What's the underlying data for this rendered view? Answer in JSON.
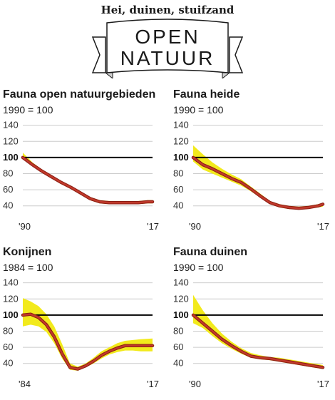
{
  "header": {
    "subtitle": "Hei, duinen, stuifzand",
    "line1": "OPEN",
    "line2": "NATUUR"
  },
  "colors": {
    "band": "#f2ea1c",
    "line": "#c0392b",
    "line_outline": "#8a1c12",
    "baseline": "#000000",
    "grid": "#cccccc"
  },
  "chart_data": [
    {
      "type": "line",
      "title": "Fauna open natuurgebieden",
      "subtitle": "1990 = 100",
      "x_range": [
        1990,
        2017
      ],
      "xtick_labels": [
        "'90",
        "'17"
      ],
      "yticks": [
        40,
        60,
        80,
        100,
        120,
        140
      ],
      "ylim": [
        30,
        145
      ],
      "baseline": 100,
      "series": [
        {
          "x": [
            1990,
            1992,
            1994,
            1996,
            1998,
            2000,
            2002,
            2004,
            2006,
            2008,
            2010,
            2012,
            2014,
            2016,
            2017
          ],
          "values": [
            100,
            91,
            83,
            76,
            69,
            63,
            56,
            49,
            45,
            44,
            44,
            44,
            44,
            45,
            45
          ],
          "lower": [
            98,
            89,
            81,
            74,
            67,
            61,
            54,
            47,
            43,
            42,
            42,
            42,
            42,
            43,
            43
          ],
          "upper": [
            106,
            94,
            85,
            78,
            71,
            65,
            58,
            51,
            47,
            46,
            46,
            46,
            46,
            47,
            47
          ]
        }
      ]
    },
    {
      "type": "line",
      "title": "Fauna heide",
      "subtitle": "1990 = 100",
      "x_range": [
        1990,
        2017
      ],
      "xtick_labels": [
        "'90",
        "'17"
      ],
      "yticks": [
        40,
        60,
        80,
        100,
        120,
        140
      ],
      "ylim": [
        30,
        145
      ],
      "baseline": 100,
      "series": [
        {
          "x": [
            1990,
            1992,
            1994,
            1996,
            1998,
            2000,
            2002,
            2004,
            2006,
            2008,
            2010,
            2012,
            2014,
            2016,
            2017
          ],
          "values": [
            100,
            91,
            86,
            80,
            74,
            69,
            61,
            52,
            44,
            40,
            38,
            37,
            38,
            40,
            42
          ],
          "lower": [
            95,
            85,
            80,
            75,
            70,
            65,
            58,
            50,
            42,
            38,
            36,
            36,
            37,
            38,
            39
          ],
          "upper": [
            115,
            104,
            94,
            86,
            79,
            73,
            64,
            55,
            46,
            42,
            40,
            39,
            40,
            42,
            44
          ]
        }
      ]
    },
    {
      "type": "line",
      "title": "Konijnen",
      "subtitle": "1984 = 100",
      "x_range": [
        1984,
        2017
      ],
      "xtick_labels": [
        "'84",
        "'17"
      ],
      "yticks": [
        40,
        60,
        80,
        100,
        120,
        140
      ],
      "ylim": [
        30,
        145
      ],
      "baseline": 100,
      "series": [
        {
          "x": [
            1984,
            1986,
            1988,
            1990,
            1992,
            1994,
            1996,
            1998,
            2000,
            2002,
            2004,
            2006,
            2008,
            2010,
            2012,
            2014,
            2017
          ],
          "values": [
            100,
            101,
            97,
            88,
            73,
            52,
            35,
            33,
            37,
            43,
            50,
            55,
            59,
            62,
            62,
            62,
            62
          ],
          "lower": [
            86,
            88,
            86,
            79,
            65,
            46,
            32,
            31,
            35,
            40,
            46,
            51,
            54,
            56,
            56,
            55,
            55
          ],
          "upper": [
            121,
            117,
            111,
            101,
            86,
            64,
            40,
            36,
            40,
            47,
            55,
            60,
            65,
            68,
            69,
            70,
            71
          ]
        }
      ]
    },
    {
      "type": "line",
      "title": "Fauna duinen",
      "subtitle": "1990 = 100",
      "x_range": [
        1990,
        2017
      ],
      "xtick_labels": [
        "'90",
        "'17"
      ],
      "yticks": [
        40,
        60,
        80,
        100,
        120,
        140
      ],
      "ylim": [
        30,
        145
      ],
      "baseline": 100,
      "series": [
        {
          "x": [
            1990,
            1992,
            1994,
            1996,
            1998,
            2000,
            2002,
            2004,
            2006,
            2008,
            2010,
            2012,
            2014,
            2016,
            2017
          ],
          "values": [
            100,
            90,
            80,
            70,
            62,
            55,
            49,
            47,
            46,
            44,
            42,
            40,
            38,
            36,
            35
          ],
          "lower": [
            90,
            84,
            74,
            65,
            58,
            52,
            47,
            45,
            44,
            42,
            40,
            38,
            36,
            34,
            33
          ],
          "upper": [
            125,
            106,
            90,
            77,
            67,
            59,
            53,
            50,
            48,
            47,
            45,
            43,
            41,
            39,
            38
          ]
        }
      ]
    }
  ]
}
